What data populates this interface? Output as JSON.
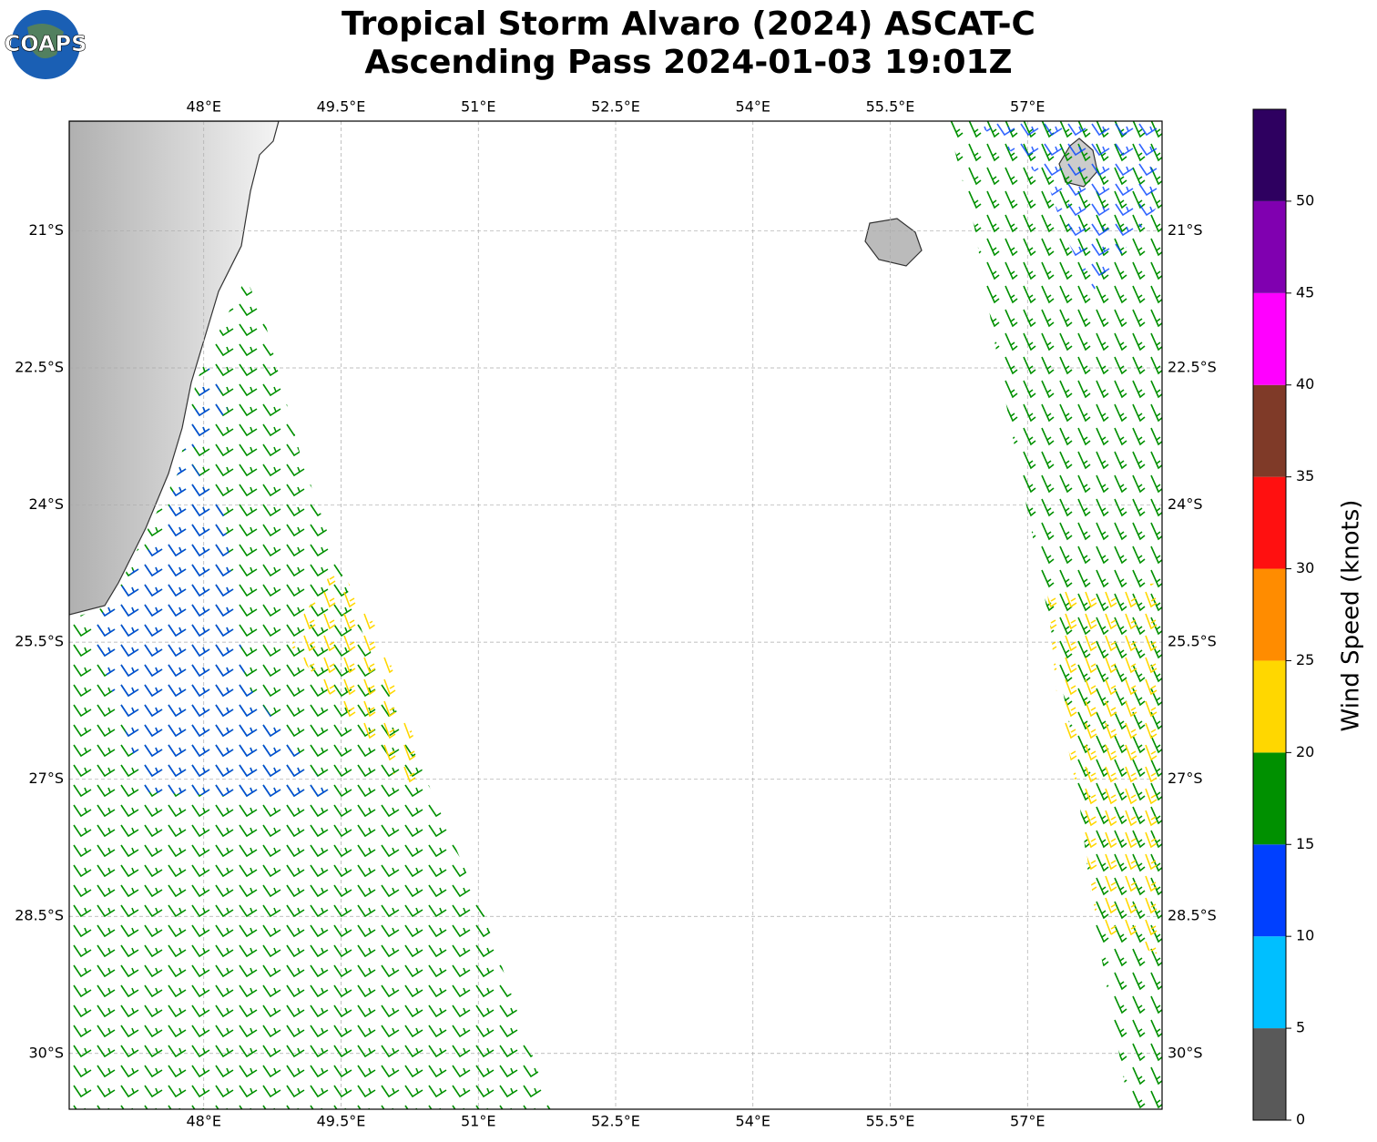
{
  "header": {
    "title_line1": "Tropical Storm Alvaro (2024) ASCAT-C",
    "title_line2": "Ascending Pass 2024-01-03 19:01Z",
    "logo": "COAPS"
  },
  "map": {
    "xlim": [
      46.53,
      58.47
    ],
    "ylim": [
      -30.61,
      -19.8
    ],
    "xticks": [
      {
        "value": 48,
        "label": "48°E"
      },
      {
        "value": 49.5,
        "label": "49.5°E"
      },
      {
        "value": 51,
        "label": "51°E"
      },
      {
        "value": 52.5,
        "label": "52.5°E"
      },
      {
        "value": 54,
        "label": "54°E"
      },
      {
        "value": 55.5,
        "label": "55.5°E"
      },
      {
        "value": 57,
        "label": "57°E"
      }
    ],
    "yticks": [
      {
        "value": -21,
        "label": "21°S"
      },
      {
        "value": -22.5,
        "label": "22.5°S"
      },
      {
        "value": -24,
        "label": "24°S"
      },
      {
        "value": -25.5,
        "label": "25.5°S"
      },
      {
        "value": -27,
        "label": "27°S"
      },
      {
        "value": -28.5,
        "label": "28.5°S"
      },
      {
        "value": -30,
        "label": "30°S"
      }
    ],
    "grid": true
  },
  "colorbar": {
    "label": "Wind Speed (knots)",
    "bounds": [
      0,
      5,
      10,
      15,
      20,
      25,
      30,
      35,
      40,
      45,
      50,
      55
    ],
    "colors": [
      "#595959",
      "#00bfff",
      "#0040ff",
      "#009000",
      "#ffd700",
      "#ff8c00",
      "#ff1010",
      "#7f3a28",
      "#ff00ff",
      "#8000b0",
      "#2e0060"
    ],
    "ticks": [
      0,
      5,
      10,
      15,
      20,
      25,
      30,
      35,
      40,
      45,
      50
    ]
  }
}
